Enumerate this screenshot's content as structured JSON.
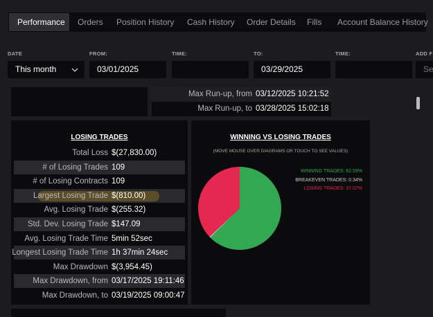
{
  "tabs": [
    "Performance",
    "Orders",
    "Position History",
    "Cash History",
    "Order Details",
    "Fills",
    "Account Balance History"
  ],
  "filters": [
    {
      "label": "DATE",
      "value": "This month"
    },
    {
      "label": "FROM:",
      "value": "03/01/2025"
    },
    {
      "label": "TIME:"
    },
    {
      "label": "TO:",
      "value": "03/29/2025"
    },
    {
      "label": "TIME:"
    },
    {
      "label": "ADD F",
      "value": "Se"
    }
  ],
  "run_up": {
    "rows": [
      [
        "Max Run-up, from",
        "03/12/2025 10:21:52"
      ],
      [
        "Max Run-up, to",
        "03/28/2025 15:02:18"
      ]
    ]
  },
  "losing_trades": {
    "title": "LOSING TRADES",
    "rows": [
      [
        "Total Loss",
        "$(27,830.00)"
      ],
      [
        "# of Losing Trades",
        "109"
      ],
      [
        "# of Losing Contracts",
        "109"
      ],
      [
        "Largest Losing Trade",
        "$(810.00)"
      ],
      [
        "Avg. Losing Trade",
        "$(255.32)"
      ],
      [
        "Std. Dev. Losing Trade",
        "$147.09"
      ],
      [
        "Avg. Losing Trade Time",
        "5min 52sec"
      ],
      [
        "Longest Losing Trade Time",
        "1h 37min 24sec"
      ],
      [
        "Max Drawdown",
        "$(3,954.45)"
      ],
      [
        "Max Drawdown, from",
        "03/17/2025 19:11:46"
      ],
      [
        "Max Drawdown, to",
        "03/19/2025 09:00:47"
      ]
    ]
  },
  "winning_vs_losing": {
    "title": "WINNING VS LOSING TRADES",
    "subtitle": "(MOVE MOUSE OVER DIAGRAMS OR TOUCH TO SEE VALUES)",
    "slices": [
      {
        "label": "WINNING TRADES: 62.59%",
        "value": 62.59,
        "color": "#33a852"
      },
      {
        "label": "BREAKEVEN TRADES: 0.34%",
        "value": 0.34,
        "color": "#d8d8d8"
      },
      {
        "label": "LOSING TRADES: 37.07%",
        "value": 37.07,
        "color": "#e4284f"
      }
    ]
  }
}
